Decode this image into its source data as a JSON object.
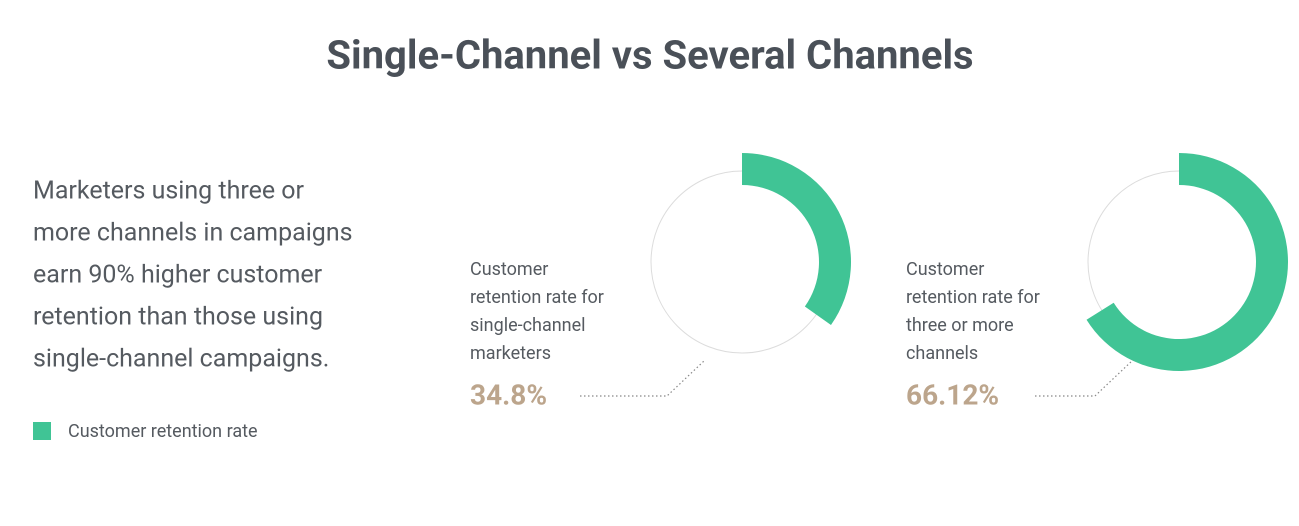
{
  "title": "Single-Channel vs Several Channels",
  "description": [
    "Marketers using three or",
    "more channels in campaigns",
    "earn 90% higher customer",
    "retention than those using",
    "single-channel campaigns."
  ],
  "legend": {
    "name": "Customer retention rate",
    "color": "#40c495"
  },
  "chart_data": [
    {
      "type": "donut",
      "caption": [
        "Customer",
        "retention rate for",
        "single-channel",
        "marketers"
      ],
      "values": [
        34.8
      ],
      "value_labels": [
        "34.8%"
      ],
      "color": "#40c495"
    },
    {
      "type": "donut",
      "caption": [
        "Customer",
        "retention rate for",
        "three or more",
        "channels"
      ],
      "values": [
        66.12
      ],
      "value_labels": [
        "66.12%"
      ],
      "color": "#40c495"
    }
  ]
}
